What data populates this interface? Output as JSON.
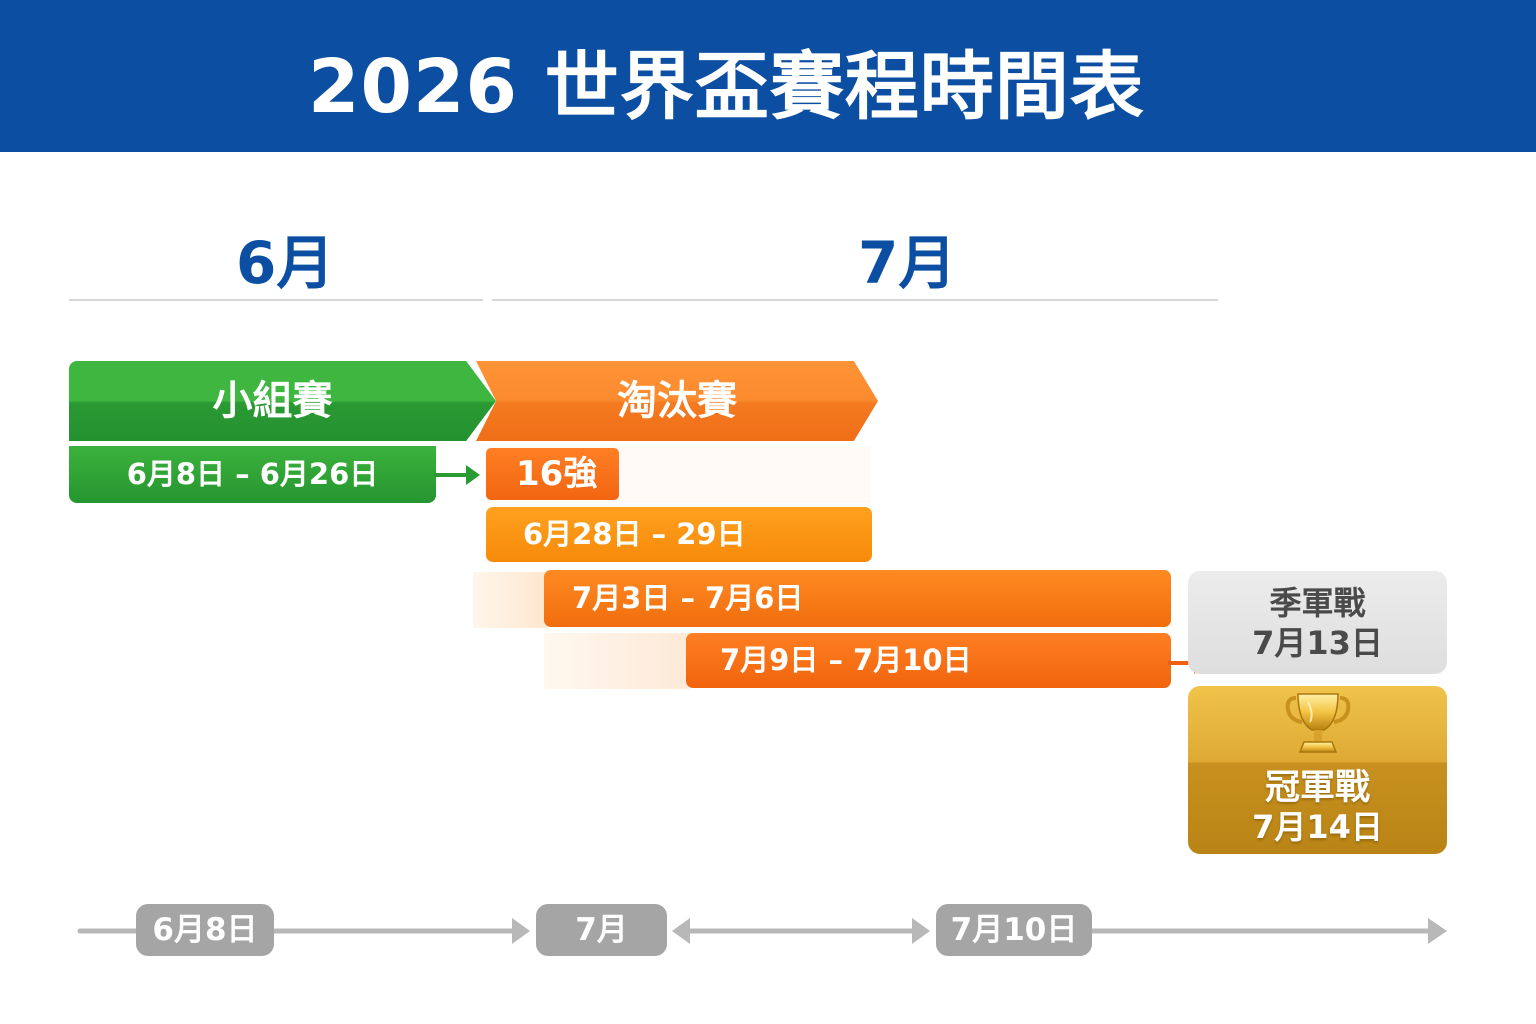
{
  "header": {
    "title": "2026 世界盃賽程時間表"
  },
  "months": {
    "june": "6月",
    "july": "7月"
  },
  "phases": {
    "group": {
      "label": "小組賽",
      "dates": "6月8日 – 6月26日"
    },
    "knockout": {
      "label": "淘汰賽"
    }
  },
  "rounds": {
    "r16": {
      "label": "16強",
      "dates": "6月28日 – 29日"
    },
    "qf": {
      "dates": "7月3日 – 7月6日"
    },
    "sf": {
      "dates": "7月9日 – 7月10日"
    }
  },
  "third_place": {
    "label": "季軍戰",
    "date": "7月13日"
  },
  "final": {
    "label": "冠軍戰",
    "date": "7月14日"
  },
  "timeline": {
    "markers": [
      "6月8日",
      "7月",
      "7月10日"
    ]
  },
  "colors": {
    "header": "#0b4ea2",
    "group": "#2a9a33",
    "knockout": "#f47a20",
    "gold": "#d9a22b",
    "gray": "#a5a5a5"
  }
}
